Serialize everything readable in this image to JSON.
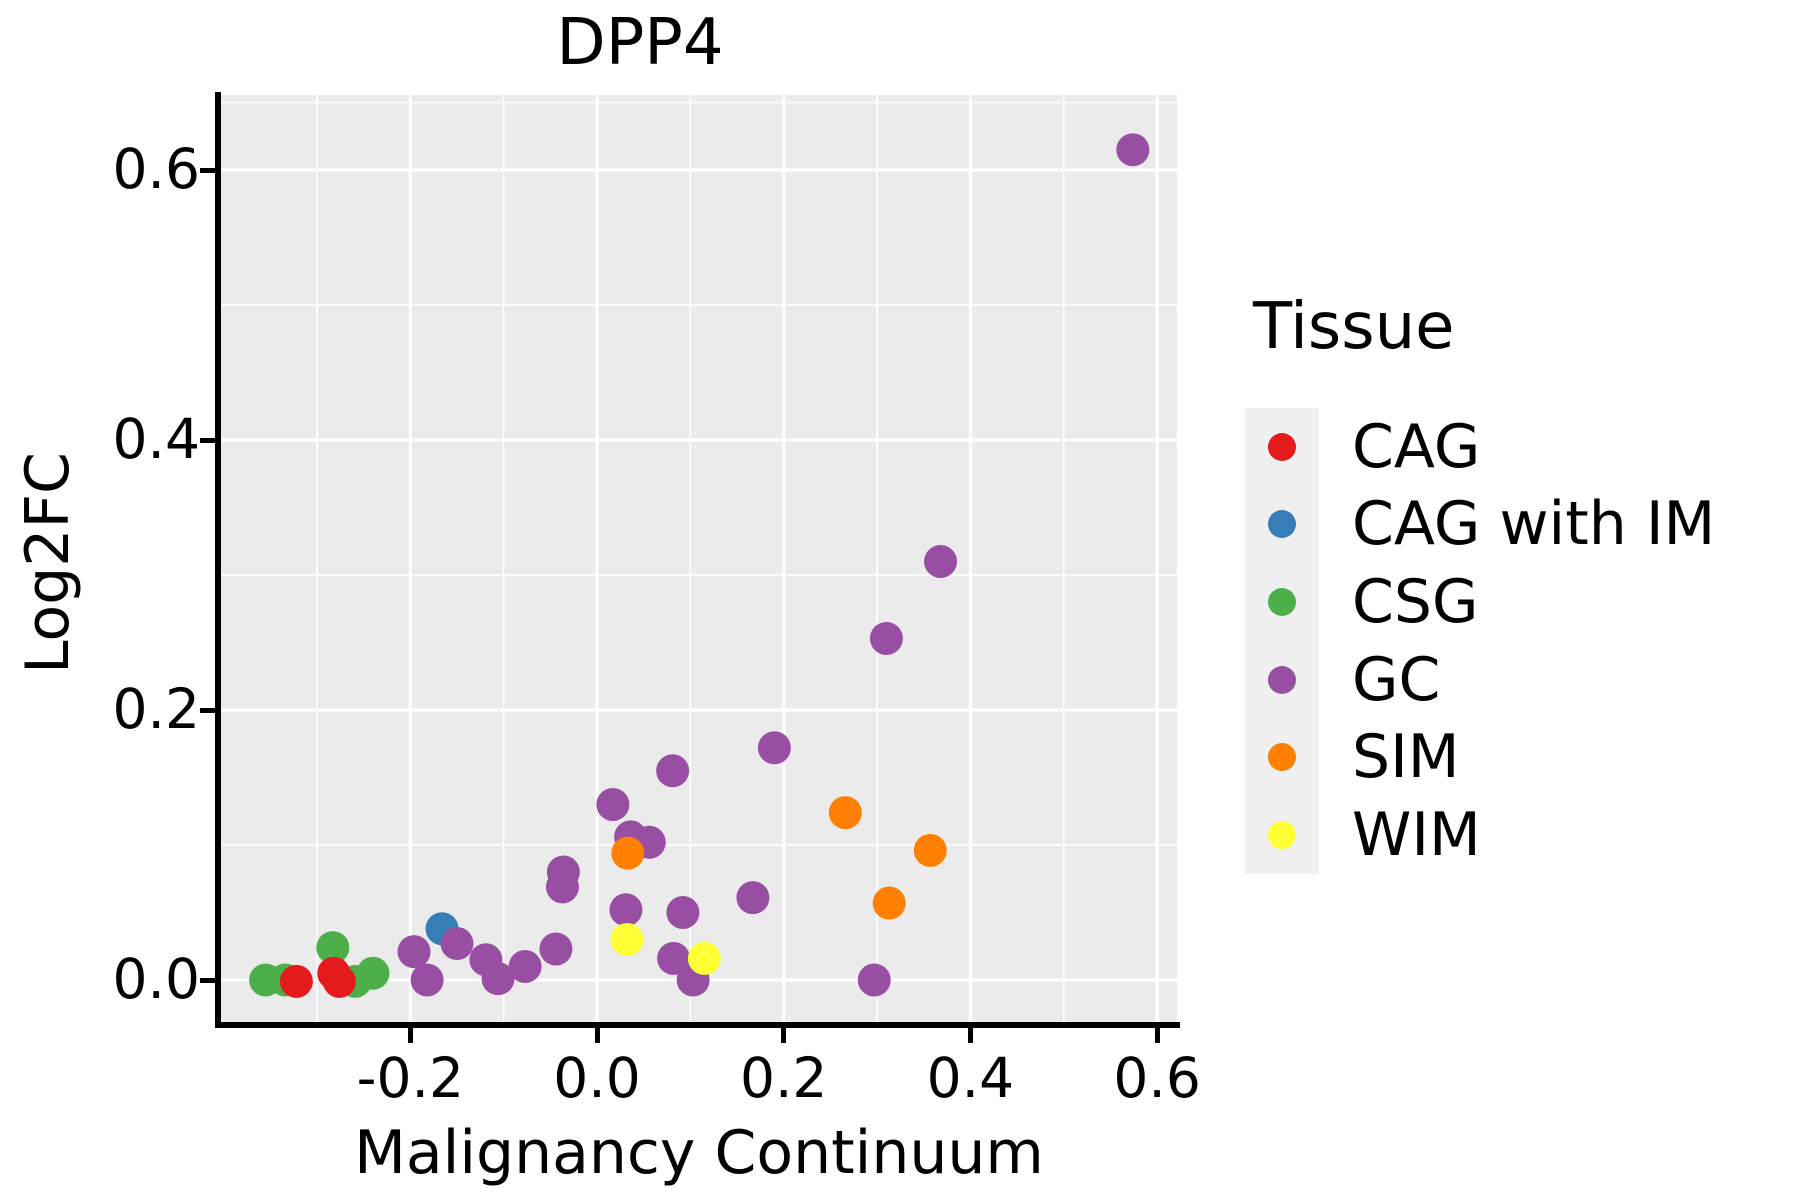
{
  "title": "DPP4",
  "axes": {
    "x_label": "Malignancy Continuum",
    "y_label": "Log2FC",
    "x_ticks": [
      {
        "label": "-0.2",
        "value": -0.2
      },
      {
        "label": "0.0",
        "value": 0.0
      },
      {
        "label": "0.2",
        "value": 0.2
      },
      {
        "label": "0.4",
        "value": 0.4
      },
      {
        "label": "0.6",
        "value": 0.6
      }
    ],
    "y_ticks": [
      {
        "label": "0.0",
        "value": 0.0
      },
      {
        "label": "0.2",
        "value": 0.2
      },
      {
        "label": "0.4",
        "value": 0.4
      },
      {
        "label": "0.6",
        "value": 0.6
      }
    ],
    "x_minor": [
      -0.3,
      -0.1,
      0.1,
      0.3,
      0.5
    ],
    "y_minor": [
      0.1,
      0.3,
      0.5,
      0.65
    ]
  },
  "legend": {
    "title": "Tissue",
    "items": [
      {
        "label": "CAG",
        "color": "#E41A1C"
      },
      {
        "label": "CAG with IM",
        "color": "#377EB8"
      },
      {
        "label": "CSG",
        "color": "#4DAF4A"
      },
      {
        "label": "GC",
        "color": "#984EA3"
      },
      {
        "label": "SIM",
        "color": "#FF7F00"
      },
      {
        "label": "WIM",
        "color": "#FFFF33"
      }
    ]
  },
  "colors": {
    "panel_background": "#EBEBEB",
    "gridline": "#FFFFFF",
    "axis": "#000000"
  },
  "chart_data": {
    "type": "scatter",
    "title": "DPP4",
    "xlabel": "Malignancy Continuum",
    "ylabel": "Log2FC",
    "xlim": [
      -0.4,
      0.62
    ],
    "ylim": [
      -0.03,
      0.655
    ],
    "grid": true,
    "legend_position": "right",
    "series": [
      {
        "name": "CSG",
        "color": "#4DAF4A",
        "points": [
          [
            -0.355,
            0.0
          ],
          [
            -0.334,
            0.0
          ],
          [
            -0.283,
            0.024
          ],
          [
            -0.259,
            -0.001
          ],
          [
            -0.24,
            0.005
          ]
        ]
      },
      {
        "name": "CAG",
        "color": "#E41A1C",
        "points": [
          [
            -0.322,
            -0.001
          ],
          [
            -0.282,
            0.005
          ],
          [
            -0.276,
            -0.001
          ]
        ]
      },
      {
        "name": "CAG with IM",
        "color": "#377EB8",
        "points": [
          [
            -0.166,
            0.038
          ]
        ]
      },
      {
        "name": "GC",
        "color": "#984EA3",
        "points": [
          [
            -0.196,
            0.021
          ],
          [
            -0.182,
            0.0
          ],
          [
            -0.15,
            0.027
          ],
          [
            -0.119,
            0.015
          ],
          [
            -0.106,
            0.001
          ],
          [
            -0.077,
            0.01
          ],
          [
            -0.044,
            0.023
          ],
          [
            -0.036,
            0.08
          ],
          [
            -0.037,
            0.069
          ],
          [
            0.017,
            0.13
          ],
          [
            0.031,
            0.052
          ],
          [
            0.036,
            0.106
          ],
          [
            0.056,
            0.102
          ],
          [
            0.081,
            0.155
          ],
          [
            0.082,
            0.016
          ],
          [
            0.092,
            0.05
          ],
          [
            0.103,
            0.0
          ],
          [
            0.167,
            0.061
          ],
          [
            0.19,
            0.172
          ],
          [
            0.297,
            0.0
          ],
          [
            0.31,
            0.253
          ],
          [
            0.368,
            0.31
          ],
          [
            0.574,
            0.615
          ]
        ]
      },
      {
        "name": "SIM",
        "color": "#FF7F00",
        "points": [
          [
            0.033,
            0.094
          ],
          [
            0.266,
            0.124
          ],
          [
            0.357,
            0.096
          ],
          [
            0.313,
            0.057
          ]
        ]
      },
      {
        "name": "WIM",
        "color": "#FFFF33",
        "points": [
          [
            0.032,
            0.03
          ],
          [
            0.115,
            0.016
          ]
        ]
      }
    ]
  }
}
